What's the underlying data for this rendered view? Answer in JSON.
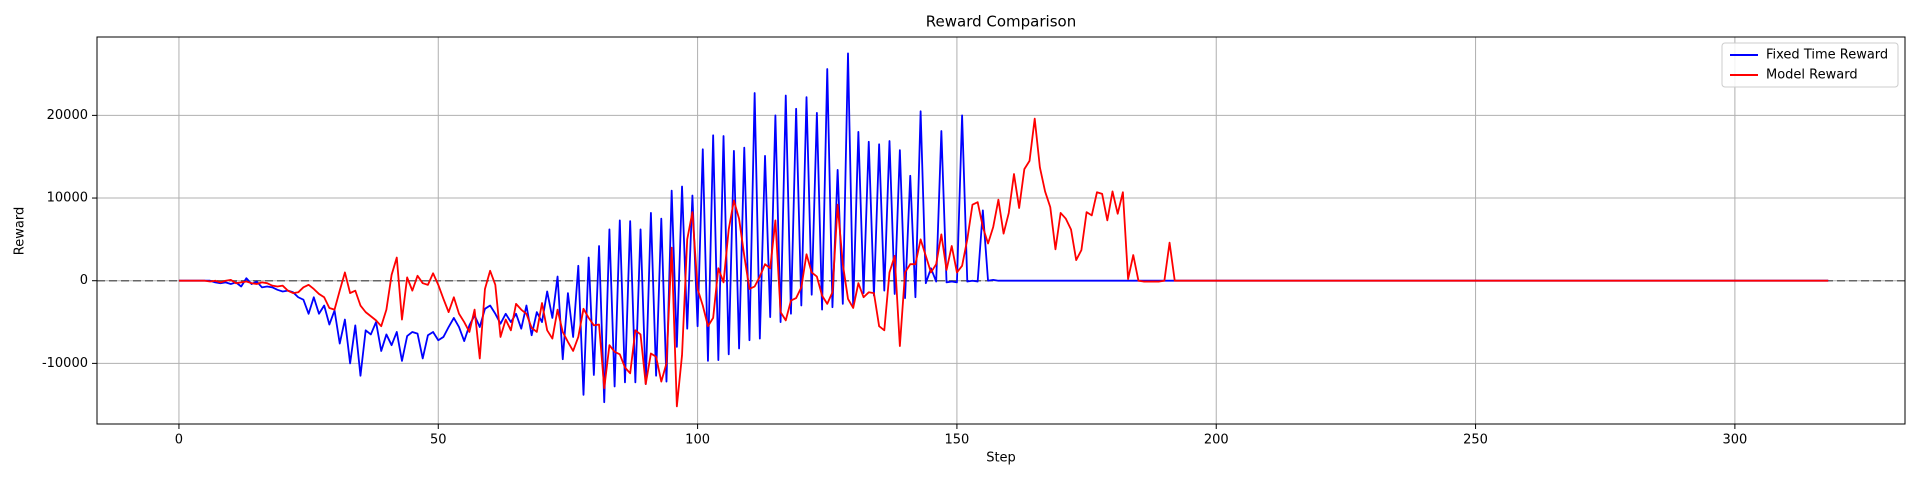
{
  "chart_data": {
    "type": "line",
    "title": "Reward Comparison",
    "x_label": "Step",
    "y_label": "Reward",
    "xlim": [
      -15.8,
      332.8
    ],
    "ylim": [
      -17333,
      29481
    ],
    "xticks": [
      0,
      50,
      100,
      150,
      200,
      250,
      300
    ],
    "yticks": [
      -10000,
      0,
      10000,
      20000
    ],
    "grid": true,
    "legend": "upper right",
    "hline": 0,
    "x": [
      0,
      1,
      2,
      3,
      4,
      5,
      6,
      7,
      8,
      9,
      10,
      11,
      12,
      13,
      14,
      15,
      16,
      17,
      18,
      19,
      20,
      21,
      22,
      23,
      24,
      25,
      26,
      27,
      28,
      29,
      30,
      31,
      32,
      33,
      34,
      35,
      36,
      37,
      38,
      39,
      40,
      41,
      42,
      43,
      44,
      45,
      46,
      47,
      48,
      49,
      50,
      51,
      52,
      53,
      54,
      55,
      56,
      57,
      58,
      59,
      60,
      61,
      62,
      63,
      64,
      65,
      66,
      67,
      68,
      69,
      70,
      71,
      72,
      73,
      74,
      75,
      76,
      77,
      78,
      79,
      80,
      81,
      82,
      83,
      84,
      85,
      86,
      87,
      88,
      89,
      90,
      91,
      92,
      93,
      94,
      95,
      96,
      97,
      98,
      99,
      100,
      101,
      102,
      103,
      104,
      105,
      106,
      107,
      108,
      109,
      110,
      111,
      112,
      113,
      114,
      115,
      116,
      117,
      118,
      119,
      120,
      121,
      122,
      123,
      124,
      125,
      126,
      127,
      128,
      129,
      130,
      131,
      132,
      133,
      134,
      135,
      136,
      137,
      138,
      139,
      140,
      141,
      142,
      143,
      144,
      145,
      146,
      147,
      148,
      149,
      150,
      151,
      152,
      153,
      154,
      155,
      156,
      157,
      158,
      159,
      160,
      161,
      162,
      163,
      164,
      165,
      166,
      167,
      168,
      169,
      170,
      171,
      172,
      173,
      174,
      175,
      176,
      177,
      178,
      179,
      180,
      181,
      182,
      183,
      184,
      185,
      186,
      187,
      188,
      189,
      190,
      191,
      192,
      193,
      194,
      195,
      196,
      197,
      198,
      199,
      200,
      201,
      202,
      203,
      204,
      205,
      206,
      207,
      208,
      209,
      210,
      211,
      212,
      213,
      214,
      215,
      216,
      217,
      218,
      219,
      220,
      221,
      222,
      223,
      224,
      225,
      226,
      227,
      228,
      229,
      230,
      231,
      232,
      233,
      234,
      235,
      236,
      237,
      238,
      239,
      240,
      241,
      242,
      243,
      244,
      245,
      246,
      247,
      248,
      249,
      250,
      251,
      252,
      253,
      254,
      255,
      256,
      257,
      258,
      259,
      260,
      261,
      262,
      263,
      264,
      265,
      266,
      267,
      268,
      269,
      270,
      271,
      272,
      273,
      274,
      275,
      276,
      277,
      278,
      279,
      280,
      281,
      282,
      283,
      284,
      285,
      286,
      287,
      288,
      289,
      290,
      291,
      292,
      293,
      294,
      295,
      296,
      297,
      298,
      299,
      300,
      301,
      302,
      303,
      304,
      305,
      306,
      307,
      308,
      309,
      310,
      311,
      312,
      313,
      314,
      315,
      316,
      317,
      318
    ],
    "series": [
      {
        "name": "Fixed Time Reward",
        "color": "#0000ff",
        "values": [
          0,
          0,
          0,
          0,
          0,
          0,
          0,
          -200,
          -300,
          -200,
          -400,
          -200,
          -700,
          300,
          -400,
          -100,
          -800,
          -700,
          -800,
          -1100,
          -1300,
          -1200,
          -1400,
          -2000,
          -2300,
          -4000,
          -2000,
          -4000,
          -3000,
          -5300,
          -3600,
          -7600,
          -4700,
          -10000,
          -5400,
          -11500,
          -6000,
          -6500,
          -5000,
          -8500,
          -6500,
          -7800,
          -6200,
          -9700,
          -6700,
          -6200,
          -6400,
          -9400,
          -6600,
          -6200,
          -7200,
          -6800,
          -5600,
          -4500,
          -5600,
          -7300,
          -5400,
          -4200,
          -5600,
          -3400,
          -3000,
          -4000,
          -5200,
          -4000,
          -5000,
          -4000,
          -5800,
          -3000,
          -6600,
          -3800,
          -5000,
          -1300,
          -4500,
          500,
          -9500,
          -1500,
          -6800,
          1800,
          -13800,
          2800,
          -11400,
          4200,
          -14700,
          6200,
          -12800,
          7300,
          -12300,
          7200,
          -12300,
          6200,
          -12500,
          8200,
          -11500,
          7500,
          -12200,
          10900,
          -8000,
          11400,
          -5800,
          10300,
          -5500,
          15900,
          -9700,
          17600,
          -9600,
          17500,
          -8900,
          15700,
          -8200,
          16100,
          -7200,
          22700,
          -7000,
          15100,
          -4400,
          20000,
          -5000,
          22400,
          -4000,
          20800,
          -3000,
          22200,
          -1700,
          20300,
          -3500,
          25600,
          -3200,
          13400,
          -2800,
          27500,
          -3200,
          18000,
          -1500,
          16800,
          -1800,
          16500,
          -1200,
          16900,
          -1600,
          15800,
          -2100,
          12700,
          -2000,
          20500,
          -300,
          1500,
          -100,
          18100,
          -200,
          -100,
          -200,
          20000,
          -100,
          0,
          -100,
          8500,
          0,
          100,
          0,
          0,
          0,
          0,
          0,
          0,
          0,
          0,
          0,
          0,
          0,
          0,
          0,
          0,
          0,
          0,
          0,
          0,
          0,
          0,
          0,
          0,
          0,
          0,
          0,
          0,
          0,
          0,
          0,
          0,
          0,
          0,
          0,
          0,
          0,
          0,
          0,
          0,
          0,
          0,
          0,
          0,
          0,
          0,
          0,
          0,
          0,
          0,
          0,
          0,
          0,
          0,
          0,
          0,
          0,
          0,
          0,
          0,
          0,
          0,
          0,
          0,
          0,
          0,
          0,
          0,
          0,
          0,
          0,
          0,
          0,
          0,
          0,
          0,
          0,
          0,
          0,
          0,
          0,
          0,
          0,
          0,
          0,
          0,
          0,
          0,
          0,
          0,
          0,
          0,
          0,
          0,
          0,
          0,
          0,
          0,
          0,
          0,
          0,
          0,
          0,
          0,
          0,
          0,
          0,
          0,
          0,
          0,
          0,
          0,
          0,
          0,
          0,
          0,
          0,
          0,
          0,
          0,
          0,
          0,
          0,
          0,
          0,
          0,
          0,
          0,
          0,
          0,
          0,
          0,
          0,
          0,
          0,
          0,
          0,
          0,
          0,
          0,
          0,
          0,
          0,
          0,
          0,
          0,
          0,
          0,
          0,
          0,
          0,
          0,
          0,
          0,
          0,
          0,
          0,
          0,
          0,
          0,
          0,
          0,
          0
        ]
      },
      {
        "name": "Model Reward",
        "color": "#ff0000",
        "values": [
          0,
          0,
          0,
          0,
          0,
          0,
          -100,
          0,
          -200,
          0,
          100,
          -300,
          -200,
          -100,
          -300,
          -400,
          -200,
          -300,
          -600,
          -700,
          -600,
          -1200,
          -1500,
          -1400,
          -800,
          -500,
          -1000,
          -1600,
          -2000,
          -3300,
          -3500,
          -1200,
          1000,
          -1500,
          -1200,
          -3000,
          -3800,
          -4300,
          -4800,
          -5500,
          -3500,
          700,
          2800,
          -4700,
          400,
          -1200,
          600,
          -300,
          -500,
          900,
          -500,
          -2200,
          -3800,
          -2000,
          -4000,
          -5000,
          -6200,
          -3500,
          -9400,
          -1000,
          1200,
          -500,
          -6800,
          -4700,
          -6000,
          -2800,
          -3500,
          -4000,
          -5700,
          -6200,
          -2700,
          -6000,
          -7000,
          -3500,
          -6200,
          -7400,
          -8500,
          -6800,
          -3400,
          -4500,
          -5400,
          -5300,
          -13000,
          -7800,
          -8600,
          -8900,
          -10500,
          -11200,
          -6000,
          -6500,
          -12500,
          -8800,
          -9200,
          -12200,
          -10000,
          4000,
          -15200,
          -9000,
          5000,
          8300,
          -1000,
          -3000,
          -5500,
          -4500,
          1500,
          -200,
          6200,
          9700,
          7500,
          3000,
          -1000,
          -700,
          500,
          2000,
          1500,
          7300,
          -3800,
          -4800,
          -2400,
          -2100,
          -800,
          3200,
          1000,
          500,
          -1800,
          -2800,
          -1400,
          9200,
          2000,
          -2200,
          -3300,
          -300,
          -2000,
          -1400,
          -1500,
          -5500,
          -6000,
          1000,
          3000,
          -7900,
          1000,
          2000,
          2000,
          5000,
          3000,
          1000,
          2000,
          5600,
          1300,
          4200,
          1000,
          1800,
          5000,
          9200,
          9500,
          6500,
          4500,
          6500,
          9800,
          5700,
          8200,
          12900,
          8800,
          13500,
          14500,
          19600,
          13700,
          10800,
          8900,
          3800,
          8200,
          7500,
          6200,
          2500,
          3700,
          8300,
          7900,
          10700,
          10500,
          7300,
          10800,
          8100,
          10700,
          200,
          3100,
          0,
          -100,
          -100,
          -100,
          -100,
          0,
          4600,
          0,
          0,
          0,
          0,
          0,
          0,
          0,
          0,
          0,
          0,
          0,
          0,
          0,
          0,
          0,
          0,
          0,
          0,
          0,
          0,
          0,
          0,
          0,
          0,
          0,
          0,
          0,
          0,
          0,
          0,
          0,
          0,
          0,
          0,
          0,
          0,
          0,
          0,
          0,
          0,
          0,
          0,
          0,
          0,
          0,
          0,
          0,
          0,
          0,
          0,
          0,
          0,
          0,
          0,
          0,
          0,
          0,
          0,
          0,
          0,
          0,
          0,
          0,
          0,
          0,
          0,
          0,
          0,
          0,
          0,
          0,
          0,
          0,
          0,
          0,
          0,
          0,
          0,
          0,
          0,
          0,
          0,
          0,
          0,
          0,
          0,
          0,
          0,
          0,
          0,
          0,
          0,
          0,
          0,
          0,
          0,
          0,
          0,
          0,
          0,
          0,
          0,
          0,
          0,
          0,
          0,
          0,
          0,
          0,
          0,
          0,
          0,
          0,
          0,
          0,
          0,
          0,
          0,
          0,
          0,
          0,
          0,
          0,
          0,
          0,
          0,
          0
        ]
      }
    ]
  }
}
